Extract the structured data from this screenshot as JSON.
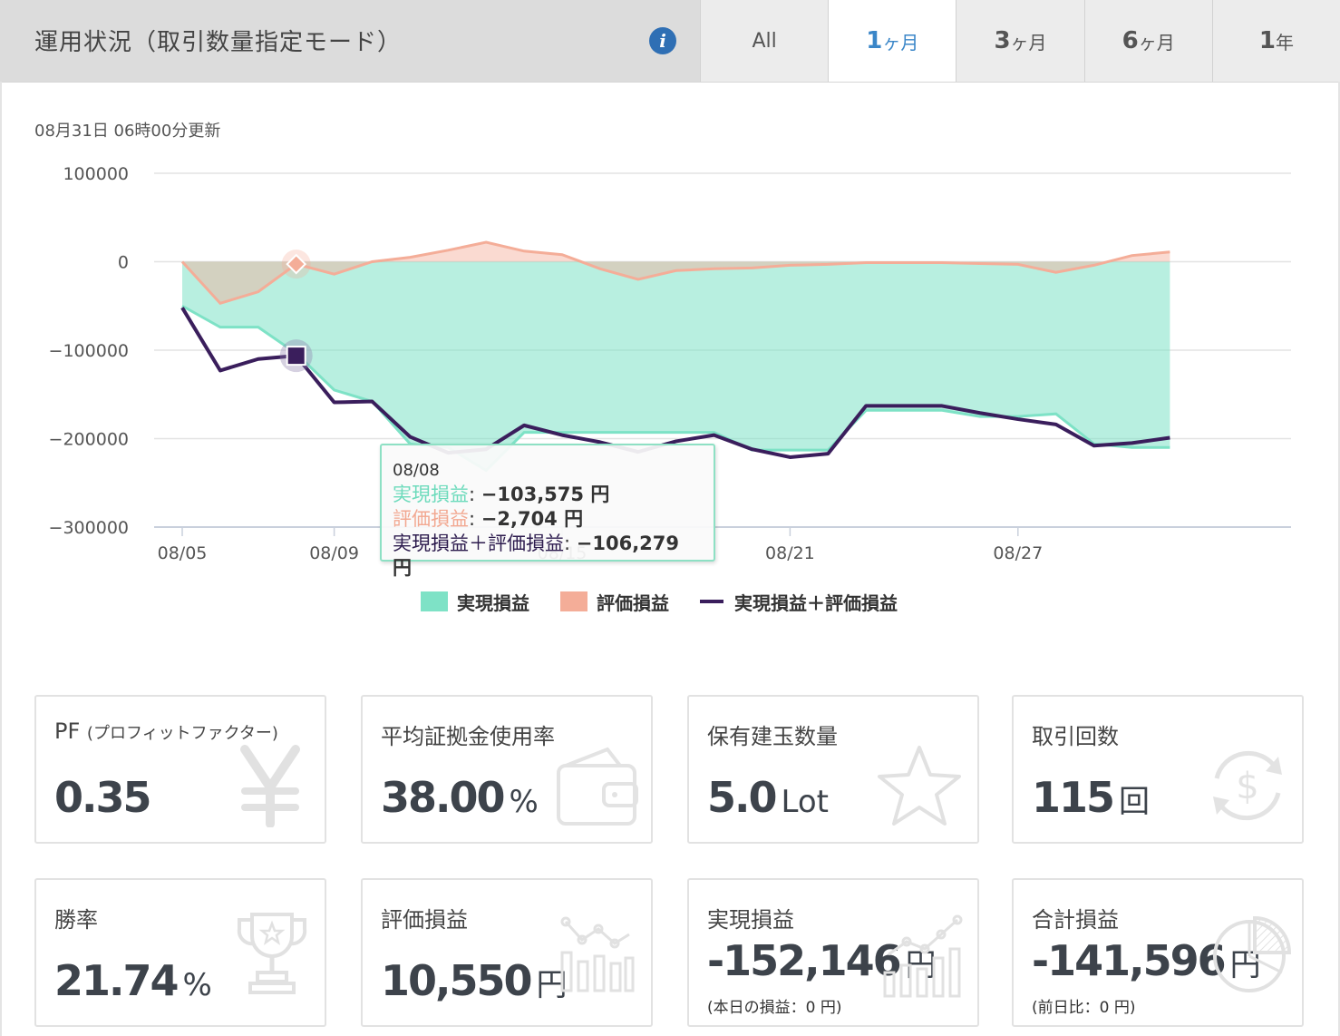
{
  "header": {
    "title": "運用状況（取引数量指定モード）",
    "info_icon": "info-icon",
    "tabs": [
      {
        "num": "",
        "unit": "All",
        "active": false
      },
      {
        "num": "1",
        "unit": "ヶ月",
        "active": true
      },
      {
        "num": "3",
        "unit": "ヶ月",
        "active": false
      },
      {
        "num": "6",
        "unit": "ヶ月",
        "active": false
      },
      {
        "num": "1",
        "unit": "年",
        "active": false
      }
    ]
  },
  "updated": "08月31日 06時00分更新",
  "colors": {
    "realized": "#7ee2c6",
    "evaluation": "#f4ad98",
    "total": "#3a1e5c",
    "accent": "#3a86c8"
  },
  "chart_data": {
    "type": "area",
    "dates": [
      "08/05",
      "08/06",
      "08/07",
      "08/08",
      "08/09",
      "08/10",
      "08/11",
      "08/12",
      "08/13",
      "08/14",
      "08/15",
      "08/16",
      "08/17",
      "08/18",
      "08/19",
      "08/20",
      "08/21",
      "08/22",
      "08/23",
      "08/24",
      "08/25",
      "08/26",
      "08/27",
      "08/28",
      "08/29",
      "08/30",
      "08/31"
    ],
    "x_tick_labels": [
      "08/05",
      "08/09",
      "08/15",
      "08/21",
      "08/27"
    ],
    "y_ticks": [
      100000,
      0,
      -100000,
      -200000,
      -300000
    ],
    "ylim": [
      -300000,
      100000
    ],
    "series": [
      {
        "name": "実現損益",
        "kind": "area",
        "values": [
          -50000,
          -74000,
          -74000,
          -103575,
          -145000,
          -158000,
          -206000,
          -210000,
          -236000,
          -193000,
          -193000,
          -193000,
          -193000,
          -193000,
          -193000,
          -213000,
          -213000,
          -213000,
          -168000,
          -168000,
          -168000,
          -175000,
          -175000,
          -172000,
          -206000,
          -210000,
          -210000
        ]
      },
      {
        "name": "評価損益",
        "kind": "area",
        "values": [
          0,
          -47000,
          -34000,
          -2704,
          -14000,
          0,
          5000,
          13000,
          22000,
          12000,
          8000,
          -8000,
          -20000,
          -10000,
          -8000,
          -7000,
          -4000,
          -3000,
          -1000,
          -1000,
          -1000,
          -2000,
          -3000,
          -12000,
          -4000,
          7000,
          11000
        ]
      },
      {
        "name": "実現損益＋評価損益",
        "kind": "line",
        "values": [
          -52000,
          -123000,
          -110000,
          -106279,
          -159000,
          -158000,
          -198000,
          -216000,
          -212000,
          -185000,
          -196000,
          -204000,
          -215000,
          -203000,
          -196000,
          -212000,
          -221000,
          -217000,
          -163000,
          -163000,
          -163000,
          -171000,
          -178000,
          -184000,
          -208000,
          -205000,
          -199000
        ]
      }
    ],
    "tooltip": {
      "date": "08/08",
      "realized_label": "実現損益",
      "realized_value": "−103,575 円",
      "eval_label": "評価損益",
      "eval_value": "−2,704 円",
      "total_label": "実現損益＋評価損益",
      "total_value": "−106,279 円"
    },
    "legend": [
      "実現損益",
      "評価損益",
      "実現損益＋評価損益"
    ]
  },
  "cards": [
    {
      "label": "PF",
      "label_sub": "(プロフィットファクター)",
      "value": "0.35",
      "unit": "",
      "note": "",
      "icon": "yen-icon"
    },
    {
      "label": "平均証拠金使用率",
      "label_sub": "",
      "value": "38.00",
      "unit": "%",
      "note": "",
      "icon": "wallet-icon"
    },
    {
      "label": "保有建玉数量",
      "label_sub": "",
      "value": "5.0",
      "unit": "Lot",
      "note": "",
      "icon": "star-icon"
    },
    {
      "label": "取引回数",
      "label_sub": "",
      "value": "115",
      "unit": "回",
      "note": "",
      "icon": "exchange-dollar-icon"
    },
    {
      "label": "勝率",
      "label_sub": "",
      "value": "21.74",
      "unit": "%",
      "note": "",
      "icon": "trophy-icon"
    },
    {
      "label": "評価損益",
      "label_sub": "",
      "value": "10,550",
      "unit": "円",
      "note": "",
      "icon": "bar-chart-icon"
    },
    {
      "label": "実現損益",
      "label_sub": "",
      "value": "-152,146",
      "unit": "円",
      "note": "(本日の損益：0 円)",
      "icon": "bar-chart-icon"
    },
    {
      "label": "合計損益",
      "label_sub": "",
      "value": "-141,596",
      "unit": "円",
      "note": "(前日比：0 円)",
      "icon": "pie-chart-icon"
    }
  ]
}
